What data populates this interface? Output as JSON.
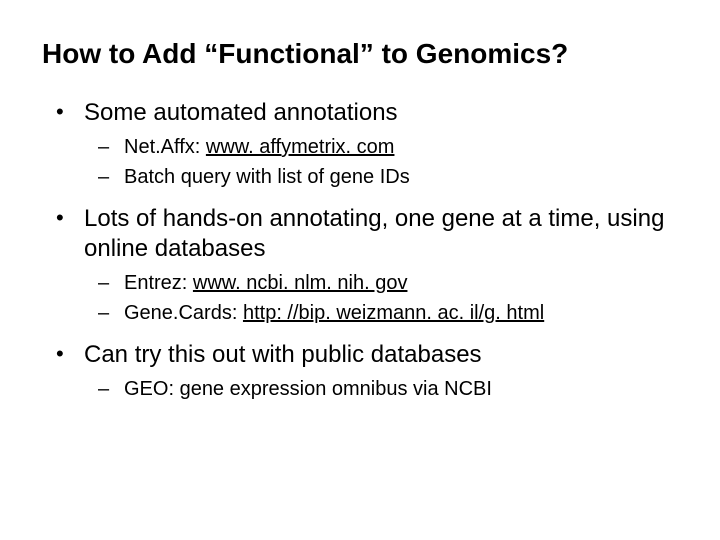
{
  "slide": {
    "background_color": "#ffffff",
    "text_color": "#000000",
    "title": {
      "text": "How to Add “Functional” to Genomics?",
      "fontsize": 28,
      "font_weight": "bold"
    },
    "bullets": [
      {
        "text": "Some automated annotations",
        "fontsize": 24,
        "sub": [
          {
            "prefix": "Net.Affx: ",
            "link": "www. affymetrix. com",
            "fontsize": 20
          },
          {
            "prefix": "Batch query with list of gene IDs",
            "link": "",
            "fontsize": 20
          }
        ]
      },
      {
        "text": "Lots of hands-on annotating, one gene at a time, using online databases",
        "fontsize": 24,
        "sub": [
          {
            "prefix": "Entrez: ",
            "link": "www. ncbi. nlm. nih. gov",
            "fontsize": 20
          },
          {
            "prefix": "Gene.Cards: ",
            "link": "http: //bip. weizmann. ac. il/g. html",
            "fontsize": 20
          }
        ]
      },
      {
        "text": "Can try this out with public databases",
        "fontsize": 24,
        "sub": [
          {
            "prefix": "GEO: gene expression omnibus via NCBI",
            "link": "",
            "fontsize": 20
          }
        ]
      }
    ],
    "bullet_marker": "•",
    "dash_marker": "–",
    "link_style": {
      "color": "#000000",
      "underline": true
    }
  }
}
